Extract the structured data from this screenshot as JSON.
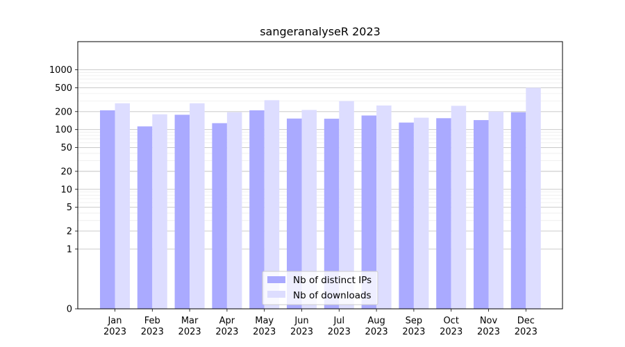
{
  "chart_data": {
    "type": "bar",
    "title": "sangeranalyseR 2023",
    "xlabel": "",
    "ylabel": "",
    "yscale": "symlog",
    "ylim": [
      0,
      1300
    ],
    "grid": true,
    "legend_position": "lower-center",
    "categories": [
      "Jan\n2023",
      "Feb\n2023",
      "Mar\n2023",
      "Apr\n2023",
      "May\n2023",
      "Jun\n2023",
      "Jul\n2023",
      "Aug\n2023",
      "Sep\n2023",
      "Oct\n2023",
      "Nov\n2023",
      "Dec\n2023"
    ],
    "yticks": [
      0,
      1,
      2,
      5,
      10,
      20,
      50,
      100,
      200,
      500,
      1000
    ],
    "ytick_labels": [
      "0",
      "1",
      "2",
      "5",
      "10",
      "20",
      "50",
      "100",
      "200",
      "500",
      "1000"
    ],
    "series": [
      {
        "name": "Nb of distinct IPs",
        "color": "#aaaaff",
        "values": [
          210,
          113,
          177,
          128,
          210,
          153,
          152,
          172,
          131,
          155,
          144,
          195
        ]
      },
      {
        "name": "Nb of downloads",
        "color": "#ddddff",
        "values": [
          275,
          180,
          275,
          195,
          310,
          213,
          300,
          253,
          158,
          250,
          200,
          500
        ]
      }
    ]
  }
}
